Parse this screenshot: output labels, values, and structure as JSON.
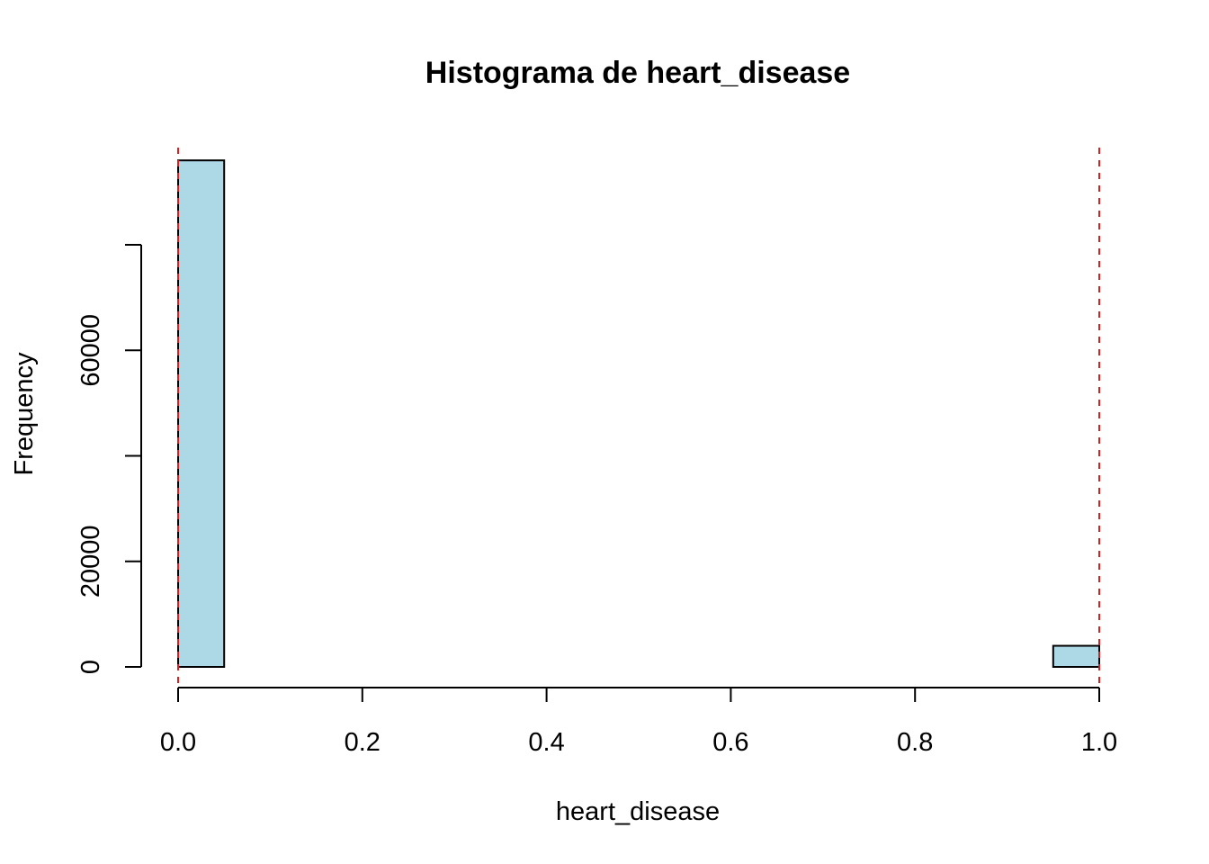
{
  "chart_data": {
    "type": "bar",
    "title": "Histograma de heart_disease",
    "xlabel": "heart_disease",
    "ylabel": "Frequency",
    "bins": [
      {
        "x0": 0.0,
        "x1": 0.05,
        "count": 96000
      },
      {
        "x0": 0.05,
        "x1": 0.1,
        "count": 0
      },
      {
        "x0": 0.1,
        "x1": 0.15,
        "count": 0
      },
      {
        "x0": 0.15,
        "x1": 0.2,
        "count": 0
      },
      {
        "x0": 0.2,
        "x1": 0.25,
        "count": 0
      },
      {
        "x0": 0.25,
        "x1": 0.3,
        "count": 0
      },
      {
        "x0": 0.3,
        "x1": 0.35,
        "count": 0
      },
      {
        "x0": 0.35,
        "x1": 0.4,
        "count": 0
      },
      {
        "x0": 0.4,
        "x1": 0.45,
        "count": 0
      },
      {
        "x0": 0.45,
        "x1": 0.5,
        "count": 0
      },
      {
        "x0": 0.5,
        "x1": 0.55,
        "count": 0
      },
      {
        "x0": 0.55,
        "x1": 0.6,
        "count": 0
      },
      {
        "x0": 0.6,
        "x1": 0.65,
        "count": 0
      },
      {
        "x0": 0.65,
        "x1": 0.7,
        "count": 0
      },
      {
        "x0": 0.7,
        "x1": 0.75,
        "count": 0
      },
      {
        "x0": 0.75,
        "x1": 0.8,
        "count": 0
      },
      {
        "x0": 0.8,
        "x1": 0.85,
        "count": 0
      },
      {
        "x0": 0.85,
        "x1": 0.9,
        "count": 0
      },
      {
        "x0": 0.9,
        "x1": 0.95,
        "count": 0
      },
      {
        "x0": 0.95,
        "x1": 1.0,
        "count": 4000
      }
    ],
    "xlim": [
      0,
      1
    ],
    "ylim": [
      0,
      96000
    ],
    "x_ticks": [
      0.0,
      0.2,
      0.4,
      0.6,
      0.8,
      1.0
    ],
    "x_tick_labels": [
      "0.0",
      "0.2",
      "0.4",
      "0.6",
      "0.8",
      "1.0"
    ],
    "y_ticks": [
      0,
      20000,
      40000,
      60000,
      80000
    ],
    "y_tick_labels": [
      "0",
      "20000",
      "",
      "60000",
      ""
    ],
    "reference_lines": [
      {
        "x": 0.0,
        "color": "#e41a1c",
        "style": "dashed"
      },
      {
        "x": 1.0,
        "color": "#e41a1c",
        "style": "dashed"
      }
    ],
    "colors": {
      "bar_fill": "#add8e6",
      "bar_stroke": "#000000"
    },
    "grid": false,
    "legend": "none"
  }
}
